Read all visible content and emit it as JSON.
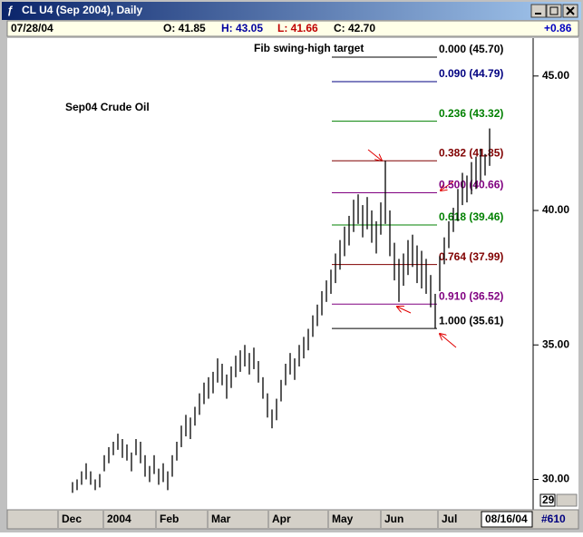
{
  "window": {
    "title": "CL U4 (Sep 2004), Daily"
  },
  "info": {
    "date": "07/28/04",
    "open": "O: 41.85",
    "high": "H: 43.05",
    "low": "L: 41.66",
    "close": "C: 42.70",
    "change": "+0.86"
  },
  "chart_data": {
    "type": "ohlc",
    "title": "Sep04 Crude Oil",
    "annotation": "Fib swing-high target",
    "color": "#000000",
    "high": [
      29.9,
      30.0,
      30.3,
      30.6,
      30.3,
      30.0,
      30.2,
      30.9,
      31.2,
      31.4,
      31.7,
      31.5,
      31.3,
      31.0,
      31.5,
      31.4,
      30.9,
      30.5,
      30.9,
      30.4,
      30.6,
      30.3,
      30.9,
      31.4,
      32.0,
      32.4,
      32.3,
      32.7,
      33.2,
      33.6,
      33.8,
      34.0,
      34.5,
      34.3,
      33.9,
      34.2,
      34.6,
      34.8,
      35.0,
      34.7,
      34.9,
      34.4,
      33.8,
      33.2,
      32.6,
      33.0,
      33.7,
      34.3,
      34.7,
      34.5,
      35.0,
      35.3,
      35.6,
      36.1,
      36.5,
      37.0,
      37.4,
      37.8,
      38.4,
      38.9,
      39.4,
      39.8,
      40.4,
      40.6,
      40.2,
      40.5,
      40.0,
      39.6,
      40.3,
      41.85,
      40.0,
      38.8,
      38.2,
      38.4,
      38.9,
      39.1,
      38.7,
      38.5,
      38.2,
      37.6,
      36.9,
      38.3,
      39.0,
      39.6,
      40.1,
      40.8,
      41.4,
      41.3,
      41.8,
      42.0,
      42.3,
      42.1,
      43.05
    ],
    "low": [
      29.5,
      29.6,
      29.8,
      30.0,
      29.8,
      29.6,
      29.7,
      30.3,
      30.6,
      30.9,
      31.1,
      30.8,
      30.7,
      30.3,
      30.9,
      30.6,
      30.1,
      29.9,
      30.2,
      29.8,
      29.9,
      29.6,
      30.1,
      30.7,
      31.2,
      31.6,
      31.5,
      32.0,
      32.4,
      32.8,
      33.0,
      33.2,
      33.6,
      33.5,
      33.0,
      33.4,
      33.8,
      34.0,
      34.2,
      33.9,
      34.1,
      33.6,
      33.0,
      32.3,
      31.9,
      32.2,
      32.9,
      33.5,
      33.9,
      33.7,
      34.2,
      34.5,
      34.8,
      35.3,
      35.7,
      36.1,
      36.6,
      36.9,
      37.3,
      37.8,
      38.3,
      38.7,
      39.2,
      39.5,
      39.0,
      39.3,
      38.8,
      38.4,
      39.1,
      39.5,
      38.3,
      37.4,
      36.6,
      37.2,
      37.6,
      37.9,
      37.3,
      37.1,
      36.9,
      36.4,
      35.61,
      37.0,
      38.0,
      38.6,
      39.2,
      39.6,
      40.2,
      40.3,
      40.6,
      40.8,
      41.1,
      41.3,
      41.66
    ],
    "fib_levels": [
      {
        "label": "0.000 (45.70)",
        "price": 45.7,
        "color": "#000000"
      },
      {
        "label": "0.090 (44.79)",
        "price": 44.79,
        "color": "#000080"
      },
      {
        "label": "0.236 (43.32)",
        "price": 43.32,
        "color": "#008000"
      },
      {
        "label": "0.382 (41.85)",
        "price": 41.85,
        "color": "#800000"
      },
      {
        "label": "0.500 (40.66)",
        "price": 40.66,
        "color": "#800080"
      },
      {
        "label": "0.618 (39.46)",
        "price": 39.46,
        "color": "#008000"
      },
      {
        "label": "0.764 (37.99)",
        "price": 37.99,
        "color": "#800000"
      },
      {
        "label": "0.910 (36.52)",
        "price": 36.52,
        "color": "#800080"
      },
      {
        "label": "1.000 (35.61)",
        "price": 35.61,
        "color": "#000000"
      }
    ],
    "ylim": [
      28.87,
      46.41
    ],
    "yticks": [
      {
        "value": 30,
        "label": "30.00"
      },
      {
        "value": 35,
        "label": "35.00"
      },
      {
        "value": 40,
        "label": "40.00"
      },
      {
        "value": 45,
        "label": "45.00"
      }
    ],
    "x_labels": [
      "Dec",
      "2004",
      "Feb",
      "Mar",
      "Apr",
      "May",
      "Jun",
      "Jul"
    ],
    "scroll_date": "08/16/04",
    "bar_count": "#610",
    "axis_box": "29"
  }
}
